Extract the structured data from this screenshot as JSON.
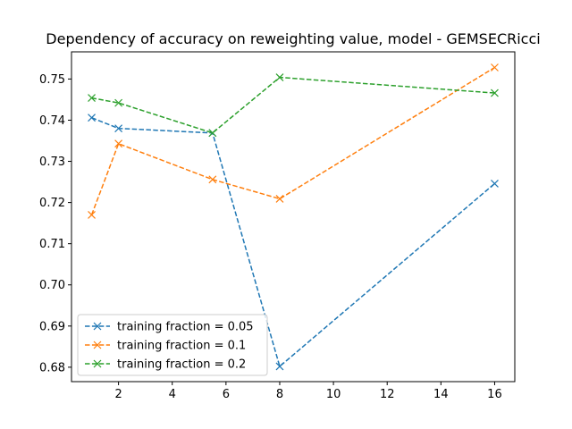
{
  "chart_data": {
    "type": "line",
    "title": "Dependency of accuracy on reweighting value, model - GEMSECRicci",
    "xlabel": "",
    "ylabel": "",
    "xlim": [
      0.25,
      16.75
    ],
    "ylim": [
      0.6765,
      0.7566
    ],
    "xticks": [
      2,
      4,
      6,
      8,
      10,
      12,
      14,
      16
    ],
    "xtick_labels": [
      "2",
      "4",
      "6",
      "8",
      "10",
      "12",
      "14",
      "16"
    ],
    "yticks": [
      0.68,
      0.69,
      0.7,
      0.71,
      0.72,
      0.73,
      0.74,
      0.75
    ],
    "ytick_labels": [
      "0.68",
      "0.69",
      "0.70",
      "0.71",
      "0.72",
      "0.73",
      "0.74",
      "0.75"
    ],
    "grid": false,
    "legend_position": "lower-left",
    "line_style": "dashed",
    "marker": "x",
    "series": [
      {
        "name": "training fraction = 0.05",
        "color": "#1f77b4",
        "x": [
          1,
          2,
          5.5,
          8,
          16
        ],
        "y": [
          0.7406,
          0.738,
          0.7369,
          0.6802,
          0.7246
        ]
      },
      {
        "name": "training fraction = 0.1",
        "color": "#ff7f0e",
        "x": [
          1,
          2,
          5.5,
          8,
          16
        ],
        "y": [
          0.717,
          0.7343,
          0.7256,
          0.7209,
          0.7528
        ]
      },
      {
        "name": "training fraction = 0.2",
        "color": "#2ca02c",
        "x": [
          1,
          2,
          5.5,
          8,
          16
        ],
        "y": [
          0.7454,
          0.7442,
          0.7369,
          0.7504,
          0.7466
        ]
      }
    ]
  }
}
